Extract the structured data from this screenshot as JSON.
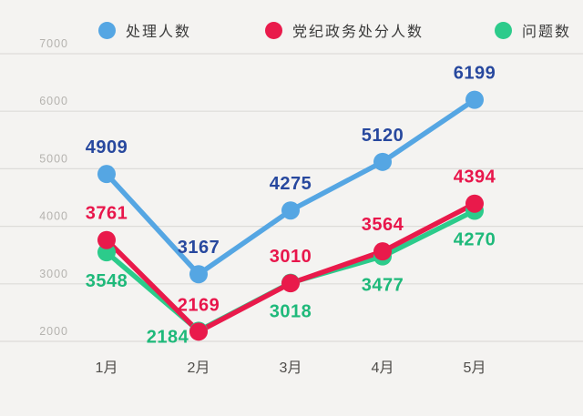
{
  "chart_data": {
    "type": "line",
    "title": "",
    "categories": [
      "1月",
      "2月",
      "3月",
      "4月",
      "5月"
    ],
    "xlabel": "",
    "ylabel": "",
    "ylim": [
      2000,
      7000
    ],
    "y_ticks": [
      7000,
      6000,
      5000,
      4000,
      3000,
      2000
    ],
    "grid": true,
    "legend_position": "top",
    "series": [
      {
        "name": "处理人数",
        "color": "#55a6e3",
        "label_color": "#27489e",
        "values": [
          4909,
          3167,
          4275,
          5120,
          6199
        ],
        "label_placement": [
          "above",
          "above",
          "above",
          "above",
          "above"
        ]
      },
      {
        "name": "党纪政务处分人数",
        "color": "#e91a4b",
        "label_color": "#e8164b",
        "values": [
          3761,
          2169,
          3010,
          3564,
          4394
        ],
        "label_placement": [
          "above",
          "above",
          "above",
          "above",
          "above"
        ]
      },
      {
        "name": "问题数",
        "color": "#2ccb8b",
        "label_color": "#1eb97a",
        "values": [
          3548,
          2184,
          3018,
          3477,
          4270
        ],
        "label_placement": [
          "below",
          "left",
          "below",
          "below",
          "below"
        ]
      }
    ]
  },
  "colors": {
    "background": "#f4f3f1",
    "gridline": "#dddcd9",
    "tick_text": "#b5b3af",
    "month_text": "#4f4d4a",
    "legend_text": "#3b3b3b"
  }
}
